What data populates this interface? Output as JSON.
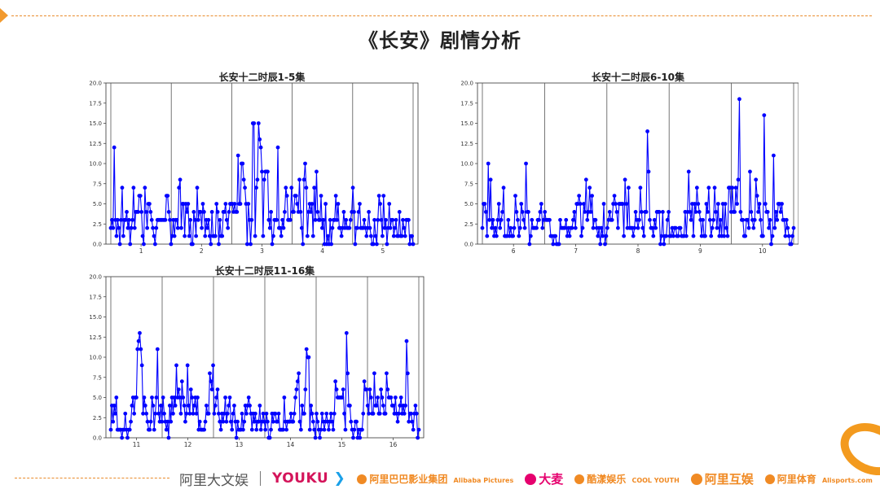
{
  "page": {
    "title": "《长安》剧情分析"
  },
  "chart_data": [
    {
      "type": "line",
      "title": "长安十二时辰1-5集",
      "ylim": [
        0,
        20
      ],
      "yticks": [
        "0.0",
        "2.5",
        "5.0",
        "7.5",
        "10.0",
        "12.5",
        "15.0",
        "17.5",
        "20.0"
      ],
      "episodes": [
        "1",
        "2",
        "3",
        "4",
        "5"
      ],
      "series": [
        {
          "color": "#0000ff",
          "values": [
            2,
            3,
            2,
            12,
            3,
            1,
            3,
            2,
            0,
            3,
            7,
            1,
            3,
            3,
            4,
            2,
            3,
            0,
            2,
            3,
            7,
            2,
            4,
            4,
            4,
            6,
            6,
            4,
            1,
            0,
            7,
            4,
            2,
            5,
            5,
            4,
            3,
            2,
            1,
            0,
            2,
            3,
            3,
            3,
            3,
            3,
            3,
            3,
            3,
            6,
            6,
            4,
            3,
            0,
            1,
            3,
            1,
            3,
            3,
            2,
            7,
            8,
            2,
            5,
            5,
            1,
            5,
            4,
            5,
            1,
            3,
            0,
            0,
            4,
            3,
            1,
            7,
            3,
            4,
            4,
            2,
            5,
            4,
            1,
            3,
            2,
            3,
            1,
            0,
            4,
            1,
            1,
            1,
            5,
            4,
            0,
            3,
            1,
            1,
            4,
            4,
            5,
            3,
            2,
            4,
            5,
            5,
            5,
            4,
            5,
            4,
            4,
            11,
            5,
            5,
            10,
            10,
            8,
            7,
            5,
            0,
            5,
            3,
            0,
            3,
            15,
            15,
            1,
            7,
            8,
            15,
            13,
            12,
            9,
            1,
            8,
            9,
            9,
            9,
            3,
            2,
            4,
            0,
            1,
            3,
            3,
            3,
            12,
            2,
            2,
            1,
            3,
            2,
            4,
            7,
            6,
            3,
            3,
            3,
            7,
            4,
            4,
            6,
            6,
            5,
            4,
            8,
            4,
            2,
            0,
            8,
            10,
            7,
            1,
            4,
            5,
            4,
            5,
            1,
            7,
            3,
            9,
            4,
            3,
            3,
            6,
            2,
            3,
            0,
            5,
            0,
            1,
            0,
            3,
            0,
            2,
            3,
            3,
            6,
            3,
            5,
            2,
            2,
            1,
            2,
            4,
            2,
            3,
            2,
            2,
            2,
            3,
            4,
            7,
            4,
            0,
            2,
            2,
            4,
            5,
            2,
            2,
            2,
            3,
            2,
            1,
            2,
            4,
            2,
            1,
            0,
            0,
            3,
            1,
            0,
            3,
            6,
            5,
            3,
            1,
            6,
            2,
            3,
            0,
            2,
            5,
            2,
            3,
            3,
            1,
            2,
            3,
            1,
            1,
            4,
            1,
            1,
            3,
            2,
            1,
            3,
            3,
            3,
            0,
            1,
            1,
            0
          ]
        }
      ]
    },
    {
      "type": "line",
      "title": "长安十二时辰6-10集",
      "ylim": [
        0,
        20
      ],
      "yticks": [
        "0.0",
        "2.5",
        "5.0",
        "7.5",
        "10.0",
        "12.5",
        "15.0",
        "17.5",
        "20.0"
      ],
      "episodes": [
        "6",
        "7",
        "8",
        "9",
        "10"
      ],
      "series": [
        {
          "color": "#0000ff",
          "values": [
            2,
            5,
            5,
            4,
            1,
            10,
            3,
            8,
            2,
            3,
            1,
            2,
            1,
            3,
            5,
            2,
            3,
            4,
            7,
            1,
            1,
            1,
            3,
            1,
            2,
            1,
            1,
            2,
            6,
            4,
            3,
            1,
            2,
            5,
            4,
            3,
            2,
            10,
            4,
            4,
            0,
            1,
            3,
            2,
            2,
            2,
            2,
            3,
            3,
            4,
            5,
            2,
            3,
            4,
            3,
            3,
            3,
            3,
            1,
            1,
            0,
            1,
            1,
            0,
            0,
            0,
            3,
            2,
            2,
            2,
            2,
            3,
            1,
            2,
            1,
            2,
            2,
            3,
            4,
            2,
            5,
            5,
            6,
            5,
            1,
            2,
            5,
            4,
            8,
            3,
            4,
            7,
            4,
            6,
            2,
            3,
            3,
            2,
            1,
            2,
            0,
            2,
            1,
            5,
            0,
            1,
            2,
            3,
            4,
            3,
            3,
            5,
            6,
            5,
            4,
            2,
            5,
            5,
            5,
            5,
            1,
            8,
            5,
            2,
            7,
            2,
            2,
            2,
            1,
            2,
            4,
            3,
            2,
            3,
            7,
            4,
            2,
            1,
            4,
            4,
            14,
            9,
            3,
            2,
            2,
            1,
            3,
            2,
            4,
            4,
            4,
            0,
            1,
            4,
            0,
            1,
            1,
            3,
            4,
            1,
            1,
            2,
            1,
            2,
            2,
            1,
            1,
            2,
            2,
            1,
            1,
            1,
            4,
            1,
            4,
            9,
            4,
            3,
            5,
            1,
            5,
            4,
            7,
            5,
            4,
            3,
            1,
            3,
            1,
            1,
            5,
            4,
            7,
            3,
            1,
            2,
            3,
            7,
            4,
            2,
            5,
            1,
            3,
            1,
            5,
            1,
            5,
            2,
            1,
            7,
            7,
            4,
            7,
            4,
            4,
            7,
            5,
            8,
            18,
            4,
            3,
            3,
            1,
            1,
            3,
            3,
            2,
            9,
            4,
            3,
            2,
            3,
            8,
            6,
            4,
            5,
            3,
            1,
            1,
            16,
            5,
            4,
            4,
            2,
            3,
            0,
            1,
            11,
            2,
            4,
            3,
            5,
            5,
            4,
            5,
            3,
            3,
            1,
            3,
            2,
            1,
            0,
            0,
            1,
            2
          ]
        }
      ]
    },
    {
      "type": "line",
      "title": "长安十二时辰11-16集",
      "ylim": [
        0,
        20
      ],
      "yticks": [
        "0.0",
        "2.5",
        "5.0",
        "7.5",
        "10.0",
        "12.5",
        "15.0",
        "17.5",
        "20.0"
      ],
      "episodes": [
        "11",
        "12",
        "13",
        "14",
        "15",
        "16"
      ],
      "series": [
        {
          "color": "#0000ff",
          "values": [
            1,
            4,
            2,
            4,
            3,
            5,
            1,
            1,
            1,
            1,
            0,
            1,
            1,
            3,
            1,
            0,
            1,
            1,
            2,
            4,
            5,
            3,
            5,
            5,
            11,
            12,
            13,
            11,
            9,
            3,
            5,
            4,
            3,
            2,
            1,
            1,
            2,
            5,
            4,
            1,
            3,
            5,
            11,
            3,
            2,
            4,
            2,
            5,
            3,
            2,
            1,
            2,
            0,
            4,
            2,
            5,
            3,
            5,
            4,
            9,
            5,
            6,
            5,
            3,
            7,
            5,
            4,
            2,
            3,
            9,
            4,
            3,
            6,
            5,
            3,
            4,
            5,
            3,
            5,
            1,
            2,
            1,
            1,
            1,
            1,
            2,
            4,
            3,
            3,
            8,
            7,
            6,
            9,
            3,
            4,
            5,
            6,
            3,
            2,
            1,
            3,
            2,
            3,
            5,
            2,
            3,
            4,
            5,
            2,
            1,
            3,
            4,
            2,
            0,
            2,
            1,
            1,
            1,
            3,
            1,
            2,
            4,
            3,
            4,
            5,
            4,
            3,
            1,
            3,
            2,
            3,
            1,
            2,
            2,
            4,
            1,
            2,
            3,
            2,
            1,
            3,
            2,
            0,
            0,
            1,
            3,
            2,
            3,
            3,
            2,
            2,
            3,
            1,
            1,
            1,
            1,
            5,
            2,
            1,
            2,
            2,
            2,
            3,
            2,
            2,
            3,
            5,
            6,
            7,
            8,
            2,
            1,
            4,
            3,
            3,
            6,
            11,
            10,
            10,
            1,
            4,
            3,
            2,
            1,
            0,
            3,
            2,
            1,
            0,
            1,
            3,
            2,
            1,
            2,
            3,
            2,
            1,
            2,
            3,
            2,
            1,
            3,
            7,
            6,
            5,
            5,
            5,
            5,
            5,
            6,
            3,
            1,
            13,
            8,
            4,
            4,
            2,
            1,
            0,
            1,
            2,
            2,
            0,
            1,
            0,
            1,
            1,
            3,
            7,
            6,
            6,
            4,
            3,
            6,
            5,
            3,
            3,
            8,
            4,
            4,
            5,
            3,
            3,
            6,
            5,
            4,
            3,
            3,
            8,
            6,
            5,
            5,
            5,
            4,
            4,
            3,
            5,
            3,
            2,
            3,
            4,
            5,
            3,
            4,
            3,
            4,
            12,
            8,
            2,
            3,
            3,
            2,
            1,
            3,
            4,
            3,
            0,
            1
          ]
        }
      ]
    }
  ],
  "footer": {
    "logos": [
      {
        "name": "alibaba-culture",
        "text": "阿里大文娱"
      },
      {
        "name": "youku",
        "text": "YOUKU"
      },
      {
        "name": "alibaba-pictures",
        "text": "阿里巴巴影业集团",
        "sub": "Alibaba Pictures"
      },
      {
        "name": "damai",
        "text": "大麦"
      },
      {
        "name": "cool-youth",
        "text": "酷漾娱乐",
        "sub": "COOL YOUTH"
      },
      {
        "name": "ali-huyu",
        "text": "阿里互娱"
      },
      {
        "name": "ali-sports",
        "text": "阿里体育",
        "sub": "Alisports.com"
      }
    ],
    "accent_color": "#f08a24"
  }
}
